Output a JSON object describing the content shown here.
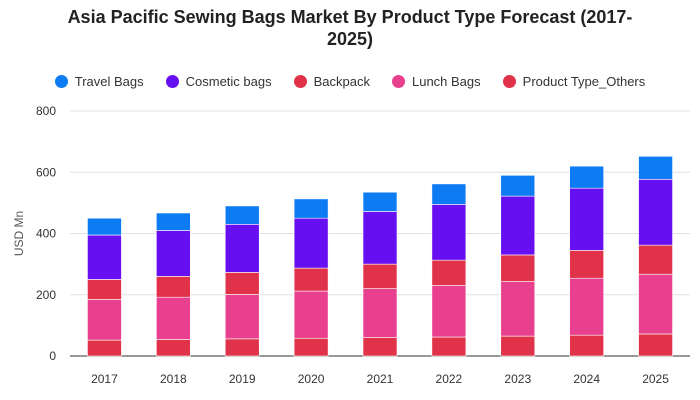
{
  "chart_data": {
    "type": "bar",
    "stacked": true,
    "title_lines": [
      "Asia Pacific Sewing Bags Market By Product Type Forecast (2017-",
      "2025)"
    ],
    "ylabel": "USD Mn",
    "xlabel": "",
    "ylim": [
      0,
      800
    ],
    "yticks": [
      0,
      200,
      400,
      600,
      800
    ],
    "grid": true,
    "legend_position": "top",
    "categories": [
      "2017",
      "2018",
      "2019",
      "2020",
      "2021",
      "2022",
      "2023",
      "2024",
      "2025"
    ],
    "series": [
      {
        "name": "Product Type_Others",
        "color": "#e0334a",
        "values": [
          52,
          54,
          56,
          58,
          60,
          62,
          65,
          68,
          72
        ]
      },
      {
        "name": "Lunch Bags",
        "color": "#e8408e",
        "values": [
          133,
          138,
          145,
          154,
          160,
          168,
          178,
          186,
          195
        ]
      },
      {
        "name": "Backpack",
        "color": "#e0334a",
        "values": [
          65,
          68,
          72,
          75,
          80,
          83,
          87,
          91,
          95
        ]
      },
      {
        "name": "Cosmetic bags",
        "color": "#6610f2",
        "values": [
          145,
          150,
          157,
          163,
          172,
          182,
          192,
          203,
          215
        ]
      },
      {
        "name": "Travel Bags",
        "color": "#0d7cf2",
        "values": [
          55,
          57,
          60,
          63,
          63,
          67,
          68,
          72,
          75
        ]
      }
    ]
  },
  "legend": [
    {
      "label": "Travel Bags",
      "color": "#0d7cf2"
    },
    {
      "label": "Cosmetic bags",
      "color": "#6610f2"
    },
    {
      "label": "Backpack",
      "color": "#e0334a"
    },
    {
      "label": "Lunch Bags",
      "color": "#e8408e"
    },
    {
      "label": "Product Type_Others",
      "color": "#e0334a"
    }
  ]
}
